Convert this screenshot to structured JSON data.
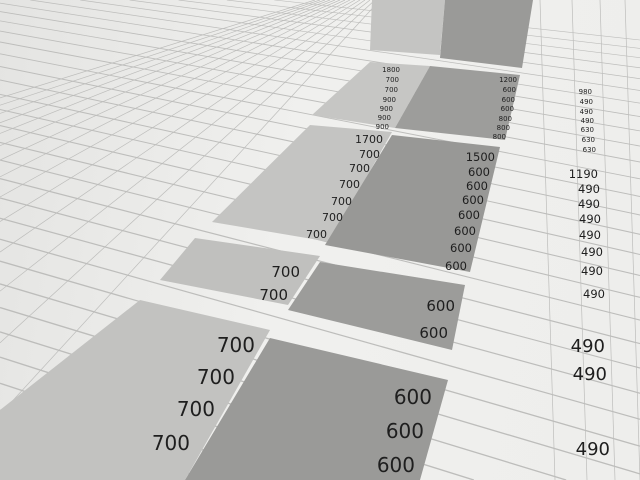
{
  "sheet": {
    "top_block": {
      "col_a": [
        "1800",
        "700",
        "700",
        "900",
        "900",
        "900",
        "900"
      ],
      "col_b": [
        "1200",
        "600",
        "600",
        "600",
        "800",
        "800",
        "800"
      ],
      "col_c": [
        "980",
        "490",
        "490",
        "490",
        "630",
        "630",
        "630"
      ]
    },
    "middle_block": {
      "col_a": [
        "1700",
        "700",
        "700",
        "700",
        "700",
        "700",
        "700"
      ],
      "col_b": [
        "1500",
        "600",
        "600",
        "600",
        "600",
        "600",
        "600",
        "600"
      ],
      "col_c": [
        "1190",
        "490",
        "490",
        "490",
        "490",
        "490",
        "490",
        "490"
      ]
    },
    "lower_block": {
      "col_a": [
        "700",
        "700"
      ],
      "col_b": [
        "600",
        "600"
      ]
    },
    "bottom_block": {
      "col_a": [
        "700",
        "700",
        "700",
        "700"
      ],
      "col_b": [
        "600",
        "600",
        "600"
      ],
      "col_c": [
        "490",
        "490",
        "490"
      ]
    }
  },
  "colors": {
    "paper": "#eeeeec",
    "shade_light": "#c4c4c2",
    "shade_dark": "#9a9a98",
    "ink": "#1e1e1e"
  }
}
